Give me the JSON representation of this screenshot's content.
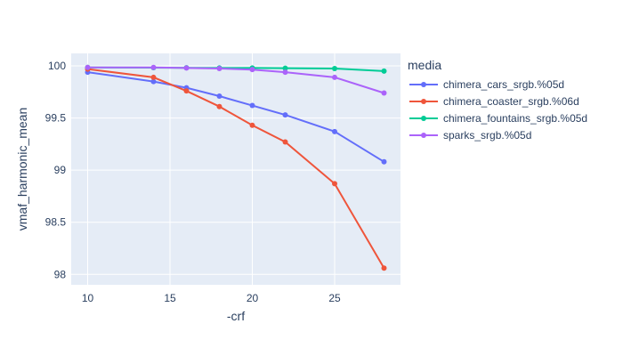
{
  "chart_data": {
    "type": "line",
    "xlabel": "-crf",
    "ylabel": "vmaf_harmonic_mean",
    "xlim": [
      9,
      29
    ],
    "ylim": [
      97.9,
      100.12
    ],
    "x_ticks": [
      10,
      15,
      20,
      25
    ],
    "y_ticks": [
      98,
      98.5,
      99,
      99.5,
      100
    ],
    "y_tick_labels": [
      "98",
      "98.5",
      "99",
      "99.5",
      "100"
    ],
    "legend_title": "media",
    "legend_position": "right",
    "grid": true,
    "plot_background": "#e5ecf6",
    "series": [
      {
        "name": "chimera_cars_srgb.%05d",
        "color": "#636efa",
        "x": [
          10,
          14,
          16,
          18,
          20,
          22,
          25,
          28
        ],
        "y": [
          99.94,
          99.85,
          99.79,
          99.71,
          99.62,
          99.53,
          99.37,
          99.08
        ]
      },
      {
        "name": "chimera_coaster_srgb.%06d",
        "color": "#ef553b",
        "x": [
          10,
          14,
          16,
          18,
          20,
          22,
          25,
          28
        ],
        "y": [
          99.97,
          99.89,
          99.76,
          99.61,
          99.43,
          99.27,
          98.87,
          98.06
        ]
      },
      {
        "name": "chimera_fountains_srgb.%05d",
        "color": "#00cc96",
        "x": [
          10,
          14,
          16,
          18,
          20,
          22,
          25,
          28
        ],
        "y": [
          99.985,
          99.983,
          99.982,
          99.98,
          99.98,
          99.978,
          99.975,
          99.95
        ]
      },
      {
        "name": "sparks_srgb.%05d",
        "color": "#ab63fa",
        "x": [
          10,
          14,
          16,
          18,
          20,
          22,
          25,
          28
        ],
        "y": [
          99.985,
          99.985,
          99.98,
          99.975,
          99.965,
          99.94,
          99.89,
          99.74
        ]
      }
    ]
  }
}
